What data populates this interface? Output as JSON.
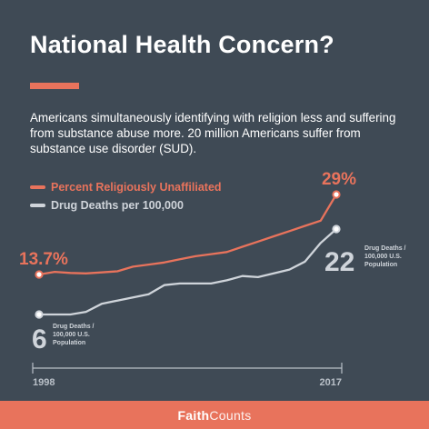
{
  "title": "National Health Concern?",
  "subtitle": "Americans simultaneously identifying with religion less and suffering from substance abuse more. 20 million Americans suffer from substance use disorder (SUD).",
  "brand": {
    "part1": "Faith",
    "part2": "Counts"
  },
  "colors": {
    "background": "#3f4a55",
    "accent": "#e8735c",
    "secondary": "#cfd4da",
    "footer": "#e8735c"
  },
  "chart_data": {
    "type": "line",
    "title": "National Health Concern?",
    "xlabel": "",
    "ylabel": "",
    "x": [
      1998,
      1999,
      2000,
      2001,
      2002,
      2003,
      2004,
      2005,
      2006,
      2007,
      2008,
      2009,
      2010,
      2011,
      2012,
      2013,
      2014,
      2015,
      2016,
      2017
    ],
    "xtick_labels": [
      "1998",
      "2017"
    ],
    "xlim": [
      1998,
      2017
    ],
    "legend_position": "top-left",
    "grid": false,
    "series": [
      {
        "name": "Percent Religiously Unaffiliated",
        "color": "#e8735c",
        "axis": "left",
        "values": [
          13.7,
          14.2,
          14.0,
          13.9,
          14.1,
          14.3,
          15.2,
          15.6,
          16.0,
          16.6,
          17.2,
          17.6,
          18.0,
          19.0,
          20.0,
          21.0,
          22.0,
          23.0,
          24.0,
          29.0
        ],
        "start_label": "13.7%",
        "end_label": "29%"
      },
      {
        "name": "Drug Deaths per 100,000",
        "color": "#cfd4da",
        "axis": "right",
        "values": [
          6.0,
          6.0,
          6.0,
          6.5,
          8.0,
          8.6,
          9.2,
          9.8,
          11.5,
          11.8,
          11.8,
          11.8,
          12.4,
          13.2,
          13.0,
          13.7,
          14.4,
          15.9,
          19.4,
          22.0
        ],
        "start_label": "6",
        "start_caption": [
          "Drug Deaths /",
          "100,000 U.S.",
          "Population"
        ],
        "end_label": "22",
        "end_caption": [
          "Drug Deaths /",
          "100,000 U.S.",
          "Population"
        ]
      }
    ],
    "y_scales": {
      "left": [
        13.7,
        29
      ],
      "right": [
        6,
        22
      ]
    }
  }
}
